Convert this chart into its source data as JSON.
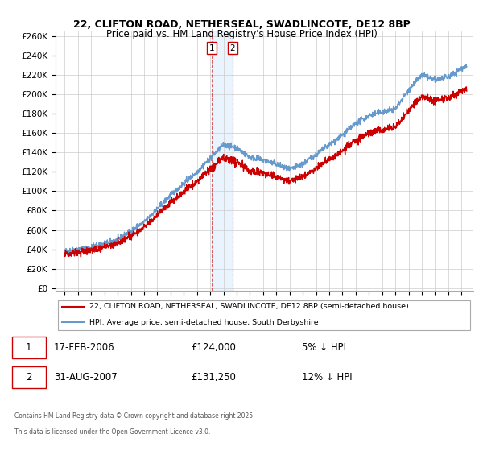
{
  "title_line1": "22, CLIFTON ROAD, NETHERSEAL, SWADLINCOTE, DE12 8BP",
  "title_line2": "Price paid vs. HM Land Registry's House Price Index (HPI)",
  "legend_entry1": "22, CLIFTON ROAD, NETHERSEAL, SWADLINCOTE, DE12 8BP (semi-detached house)",
  "legend_entry2": "HPI: Average price, semi-detached house, South Derbyshire",
  "transaction1_date": "17-FEB-2006",
  "transaction1_price": "£124,000",
  "transaction1_note": "5% ↓ HPI",
  "transaction2_date": "31-AUG-2007",
  "transaction2_price": "£131,250",
  "transaction2_note": "12% ↓ HPI",
  "footer_line1": "Contains HM Land Registry data © Crown copyright and database right 2025.",
  "footer_line2": "This data is licensed under the Open Government Licence v3.0.",
  "color_price_paid": "#cc0000",
  "color_hpi": "#6699cc",
  "color_shade": "#ddeeff",
  "ylim_min": 0,
  "ylim_max": 260000,
  "ytick_step": 20000,
  "background_color": "#ffffff",
  "grid_color": "#cccccc",
  "transaction1_year": 2006.12,
  "transaction2_year": 2007.67
}
